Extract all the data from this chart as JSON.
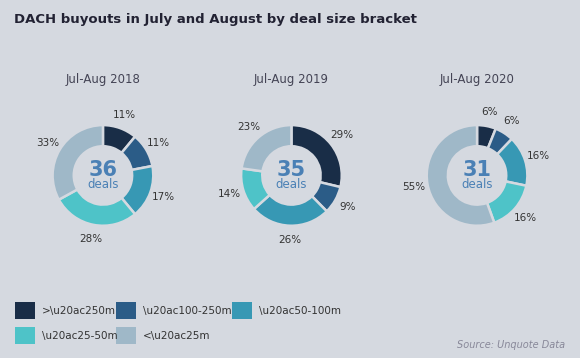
{
  "title": "DACH buyouts in July and August by deal size bracket",
  "source": "Source: Unquote Data",
  "background_color": "#d5d9e0",
  "charts": [
    {
      "label": "Jul-Aug 2018",
      "deals": "36",
      "values": [
        11,
        11,
        17,
        28,
        33
      ],
      "pct_labels": [
        "11%",
        "11%",
        "17%",
        "28%",
        "33%"
      ]
    },
    {
      "label": "Jul-Aug 2019",
      "deals": "35",
      "values": [
        29,
        9,
        26,
        14,
        23
      ],
      "pct_labels": [
        "29%",
        "9%",
        "26%",
        "14%",
        "23%"
      ]
    },
    {
      "label": "Jul-Aug 2020",
      "deals": "31",
      "values": [
        6,
        6,
        16,
        16,
        55
      ],
      "pct_labels": [
        "6%",
        "6%",
        "16%",
        "16%",
        "55%"
      ]
    }
  ],
  "colors": [
    "#192d47",
    "#2b5c87",
    "#3798b4",
    "#4ec3c8",
    "#9fb8c8"
  ],
  "legend_labels": [
    ">\\u20ac250m",
    "\\u20ac100-250m",
    "\\u20ac50-100m",
    "\\u20ac25-50m",
    "<\\u20ac25m"
  ],
  "center_num_color": "#4a80b5",
  "center_label_color": "#4a80b5",
  "pct_label_color": "#333333",
  "title_color": "#222233",
  "subtitle_color": "#444455"
}
